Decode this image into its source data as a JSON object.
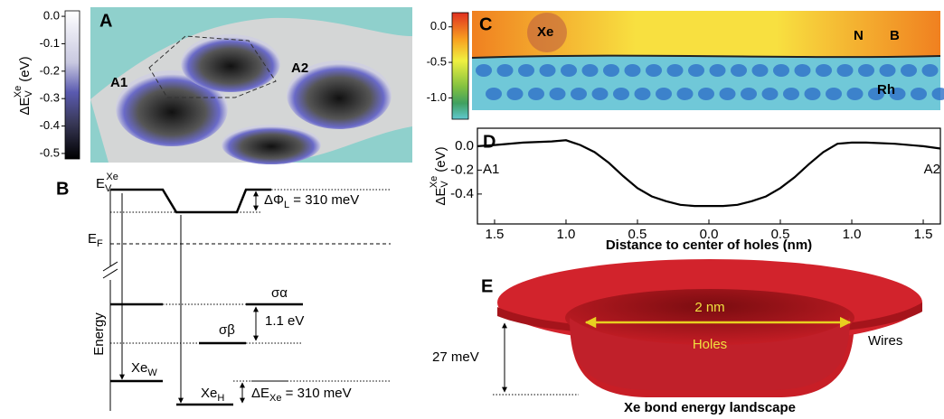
{
  "panel_a": {
    "label": "A",
    "axis_label": {
      "base": "ΔE",
      "sub": "V",
      "sup": "Xe",
      "unit": "(eV)"
    },
    "colorbar_lim": [
      0.02,
      -0.52
    ],
    "colorbar_ticks": [
      {
        "value": 0,
        "label": "0.0"
      },
      -0.1,
      -0.2,
      -0.3,
      -0.4,
      -0.5
    ],
    "annotations": [
      "A1",
      "A2"
    ]
  },
  "panel_b": {
    "label": "B",
    "vacuum": {
      "base": "E",
      "sub": "V",
      "sup": "Xe"
    },
    "work_function": {
      "base": "ΔΦ",
      "sub": "L",
      "rest": " = 310 meV"
    },
    "fermi": {
      "base": "E",
      "sub": "F"
    },
    "sigma_a": "σα",
    "sigma_b": "σβ",
    "gap": "1.1 eV",
    "energy": "Energy",
    "xe_w": {
      "base": "Xe",
      "sub": "W"
    },
    "xe_h": {
      "base": "Xe",
      "sub": "H"
    },
    "bond": {
      "base": "ΔE",
      "sub": "Xe",
      "rest": " = 310 meV"
    }
  },
  "panel_c": {
    "label": "C",
    "colorbar_lim": [
      0.2,
      -1.3
    ],
    "colorbar_ticks": [
      {
        "value": 0,
        "label": "0.0"
      },
      -0.5,
      {
        "value": -1,
        "label": "-1.0"
      }
    ],
    "annotations": [
      "Xe",
      "N",
      "B",
      "Rh"
    ]
  },
  "chart_data": {
    "type": "line",
    "label": "D",
    "xlabel": "Distance to center of holes (nm)",
    "ylabel": {
      "base": "ΔE",
      "sub": "V",
      "sup": "Xe",
      "unit": "(eV)"
    },
    "annotations": [
      "A1",
      "A2"
    ],
    "x": [
      -1.62,
      -1.5,
      -1.3,
      -1.1,
      -1.0,
      -0.9,
      -0.8,
      -0.7,
      -0.6,
      -0.5,
      -0.4,
      -0.3,
      -0.2,
      -0.1,
      0.0,
      0.1,
      0.2,
      0.3,
      0.4,
      0.5,
      0.6,
      0.7,
      0.8,
      0.9,
      1.0,
      1.1,
      1.3,
      1.5,
      1.62
    ],
    "values": [
      0.0,
      0.01,
      0.03,
      0.04,
      0.05,
      0.01,
      -0.05,
      -0.14,
      -0.25,
      -0.35,
      -0.42,
      -0.46,
      -0.49,
      -0.5,
      -0.5,
      -0.5,
      -0.49,
      -0.46,
      -0.42,
      -0.35,
      -0.26,
      -0.15,
      -0.05,
      0.02,
      0.03,
      0.03,
      0.02,
      0.0,
      -0.02
    ],
    "color": "#000000",
    "xlim": [
      -1.62,
      1.62
    ],
    "ylim": [
      -0.65,
      0.15
    ],
    "xticks": [
      {
        "value": -1.5,
        "label": "1.5"
      },
      {
        "value": -1.0,
        "label": "1.0"
      },
      {
        "value": -0.5,
        "label": "0.5"
      },
      {
        "value": 0,
        "label": "0.0"
      },
      {
        "value": 0.5,
        "label": "0.5"
      },
      {
        "value": 1.0,
        "label": "1.0"
      },
      {
        "value": 1.5,
        "label": "1.5"
      }
    ],
    "yticks": [
      {
        "value": 0,
        "label": "0.0"
      },
      -0.2,
      -0.4
    ]
  },
  "panel_e": {
    "label": "E",
    "width": "2 nm",
    "holes": "Holes",
    "wires": "Wires",
    "depth": "27 meV",
    "caption": "Xe bond energy landscape"
  }
}
